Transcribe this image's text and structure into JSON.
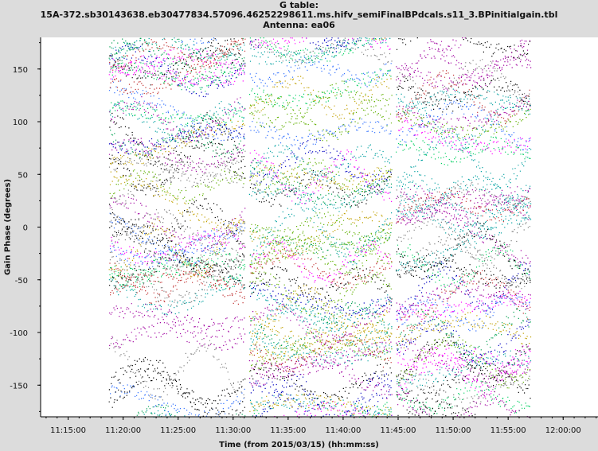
{
  "header": {
    "line1": "G table:",
    "line2": "15A-372.sb30143638.eb30477834.57096.46252298611.ms.hifv_semiFinalBPdcals.s11_3.BPinitialgain.tbl",
    "line3": "Antenna: ea06"
  },
  "chart_data": {
    "type": "scatter",
    "title": "G table: 15A-372.sb30143638.eb30477834.57096.46252298611.ms.hifv_semiFinalBPdcals.s11_3.BPinitialgain.tbl Antenna: ea06",
    "xlabel": "Time (from 2015/03/15) (hh:mm:ss)",
    "ylabel": "Gain Phase (degrees)",
    "x_range": [
      "11:12:30",
      "12:03:10"
    ],
    "ylim": [
      -180,
      180
    ],
    "x_ticks": [
      "11:15:00",
      "11:20:00",
      "11:25:00",
      "11:30:00",
      "11:35:00",
      "11:40:00",
      "11:45:00",
      "11:50:00",
      "11:55:00",
      "12:00:00"
    ],
    "y_ticks": [
      150,
      100,
      50,
      0,
      -50,
      -100,
      -150
    ],
    "grid": false,
    "segments": [
      {
        "start": "11:18:45",
        "end": "11:31:00"
      },
      {
        "start": "11:31:30",
        "end": "11:44:20"
      },
      {
        "start": "11:44:50",
        "end": "11:57:00"
      }
    ],
    "colors": [
      "#000000",
      "#a000a0",
      "#0000c0",
      "#00a050",
      "#c0a000",
      "#00a0a0",
      "#c03030",
      "#60b000",
      "#808080",
      "#ff00ff",
      "#3070ff",
      "#00d060"
    ]
  }
}
